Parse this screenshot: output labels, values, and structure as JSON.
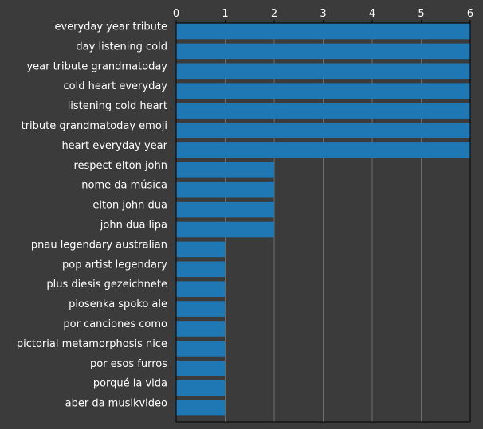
{
  "chart_data": {
    "type": "bar",
    "orientation": "horizontal",
    "title": "",
    "xlabel": "",
    "ylabel": "",
    "xlim": [
      0,
      6
    ],
    "x_ticks": [
      "0",
      "1",
      "2",
      "3",
      "4",
      "5",
      "6"
    ],
    "x_axis_position": "top",
    "grid": "vertical",
    "categories": [
      "everyday year tribute",
      "day listening cold",
      "year tribute grandmatoday",
      "cold heart everyday",
      "listening cold heart",
      "tribute grandmatoday emoji",
      "heart everyday year",
      "respect elton john",
      "nome da música",
      "elton john dua",
      "john dua lipa",
      "pnau legendary australian",
      "pop artist legendary",
      "plus diesis gezeichnete",
      "piosenka spoko ale",
      "por canciones como",
      "pictorial metamorphosis nice",
      "por esos furros",
      "porqué la vida",
      "aber da musikvideo"
    ],
    "values": [
      6,
      6,
      6,
      6,
      6,
      6,
      6,
      2,
      2,
      2,
      2,
      1,
      1,
      1,
      1,
      1,
      1,
      1,
      1,
      1
    ],
    "colors": {
      "background": "#3b3b3b",
      "bar": "#1f77b4",
      "grid": "#7a7a7a",
      "axis": "#000000",
      "text": "#ffffff"
    }
  }
}
